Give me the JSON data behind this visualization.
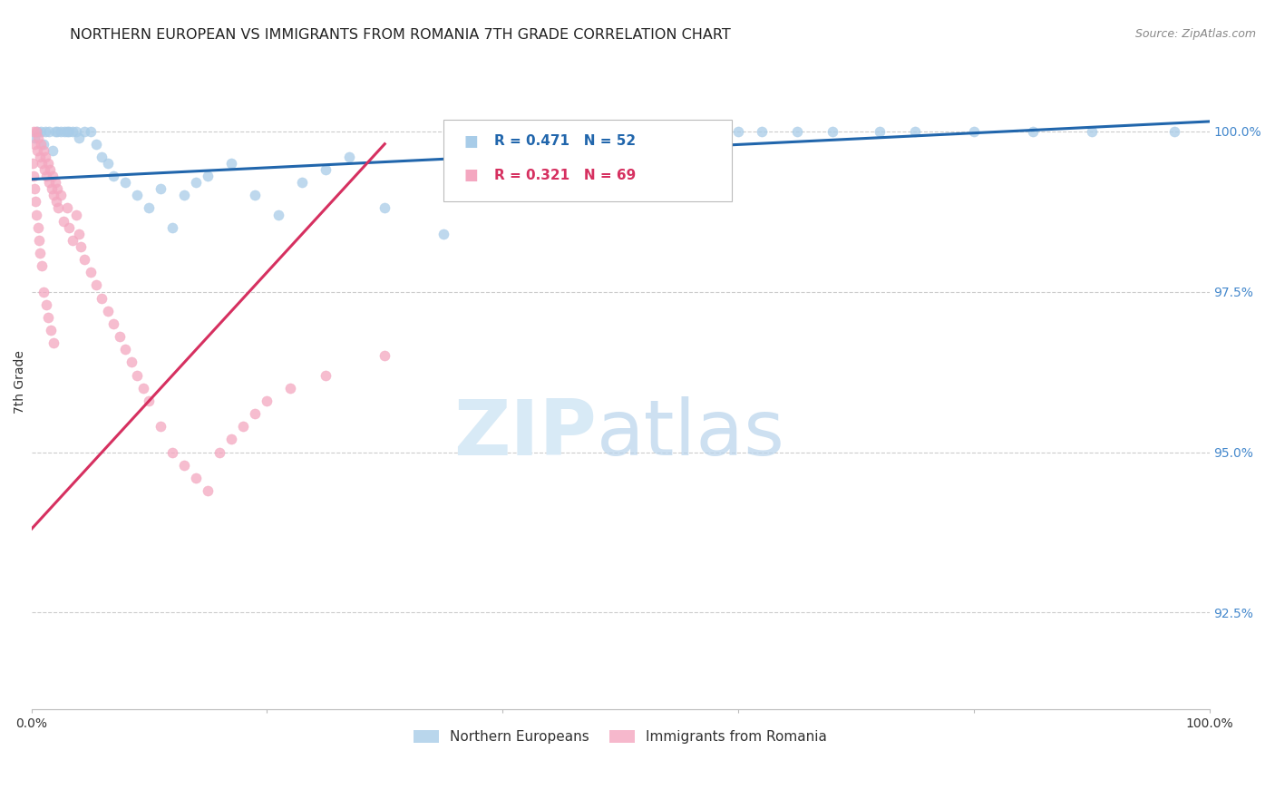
{
  "title": "NORTHERN EUROPEAN VS IMMIGRANTS FROM ROMANIA 7TH GRADE CORRELATION CHART",
  "source": "Source: ZipAtlas.com",
  "ylabel": "7th Grade",
  "ylim": [
    91.0,
    101.2
  ],
  "xlim": [
    0.0,
    100.0
  ],
  "blue_R": "R = 0.471",
  "blue_N": "N = 52",
  "pink_R": "R = 0.321",
  "pink_N": "N = 69",
  "legend_label_blue": "Northern Europeans",
  "legend_label_pink": "Immigrants from Romania",
  "blue_color": "#a8cce8",
  "pink_color": "#f4a7c0",
  "blue_line_color": "#2166ac",
  "pink_line_color": "#d63060",
  "grid_color": "#cccccc",
  "background_color": "#ffffff",
  "right_tick_color": "#4488cc",
  "title_fontsize": 11.5,
  "axis_label_fontsize": 10,
  "tick_fontsize": 10,
  "source_fontsize": 9,
  "legend_fontsize": 11,
  "marker_size": 65,
  "blue_x": [
    0.3,
    0.5,
    0.8,
    1.0,
    1.2,
    1.5,
    1.8,
    2.0,
    2.2,
    2.5,
    2.8,
    3.0,
    3.2,
    3.5,
    3.8,
    4.0,
    4.5,
    5.0,
    5.5,
    6.0,
    6.5,
    7.0,
    8.0,
    9.0,
    10.0,
    11.0,
    12.0,
    13.0,
    14.0,
    15.0,
    17.0,
    19.0,
    21.0,
    23.0,
    25.0,
    27.0,
    30.0,
    35.0,
    40.0,
    43.0,
    50.0,
    55.0,
    60.0,
    62.0,
    65.0,
    68.0,
    72.0,
    75.0,
    80.0,
    85.0,
    90.0,
    97.0
  ],
  "blue_y": [
    99.9,
    100.0,
    100.0,
    99.8,
    100.0,
    100.0,
    99.7,
    100.0,
    100.0,
    100.0,
    100.0,
    100.0,
    100.0,
    100.0,
    100.0,
    99.9,
    100.0,
    100.0,
    99.8,
    99.6,
    99.5,
    99.3,
    99.2,
    99.0,
    98.8,
    99.1,
    98.5,
    99.0,
    99.2,
    99.3,
    99.5,
    99.0,
    98.7,
    99.2,
    99.4,
    99.6,
    98.8,
    98.4,
    100.0,
    99.1,
    99.5,
    99.5,
    100.0,
    100.0,
    100.0,
    100.0,
    100.0,
    100.0,
    100.0,
    100.0,
    100.0,
    100.0
  ],
  "pink_x": [
    0.1,
    0.2,
    0.3,
    0.4,
    0.5,
    0.6,
    0.7,
    0.8,
    0.9,
    1.0,
    1.1,
    1.2,
    1.3,
    1.4,
    1.5,
    1.6,
    1.7,
    1.8,
    1.9,
    2.0,
    2.1,
    2.2,
    2.3,
    2.5,
    2.7,
    3.0,
    3.2,
    3.5,
    3.8,
    4.0,
    4.2,
    4.5,
    5.0,
    5.5,
    6.0,
    6.5,
    7.0,
    7.5,
    8.0,
    8.5,
    9.0,
    9.5,
    10.0,
    11.0,
    12.0,
    13.0,
    14.0,
    15.0,
    16.0,
    17.0,
    18.0,
    19.0,
    20.0,
    22.0,
    0.15,
    0.25,
    0.35,
    0.45,
    0.55,
    0.65,
    0.75,
    0.85,
    1.05,
    1.25,
    1.45,
    1.65,
    1.85,
    25.0,
    30.0
  ],
  "pink_y": [
    99.5,
    100.0,
    99.8,
    100.0,
    99.7,
    99.9,
    99.6,
    99.8,
    99.5,
    99.7,
    99.4,
    99.6,
    99.3,
    99.5,
    99.2,
    99.4,
    99.1,
    99.3,
    99.0,
    99.2,
    98.9,
    99.1,
    98.8,
    99.0,
    98.6,
    98.8,
    98.5,
    98.3,
    98.7,
    98.4,
    98.2,
    98.0,
    97.8,
    97.6,
    97.4,
    97.2,
    97.0,
    96.8,
    96.6,
    96.4,
    96.2,
    96.0,
    95.8,
    95.4,
    95.0,
    94.8,
    94.6,
    94.4,
    95.0,
    95.2,
    95.4,
    95.6,
    95.8,
    96.0,
    99.3,
    99.1,
    98.9,
    98.7,
    98.5,
    98.3,
    98.1,
    97.9,
    97.5,
    97.3,
    97.1,
    96.9,
    96.7,
    96.2,
    96.5
  ],
  "blue_trend_x": [
    0.0,
    100.0
  ],
  "blue_trend_y": [
    99.25,
    100.15
  ],
  "pink_trend_x": [
    0.0,
    30.0
  ],
  "pink_trend_y": [
    93.8,
    99.8
  ]
}
